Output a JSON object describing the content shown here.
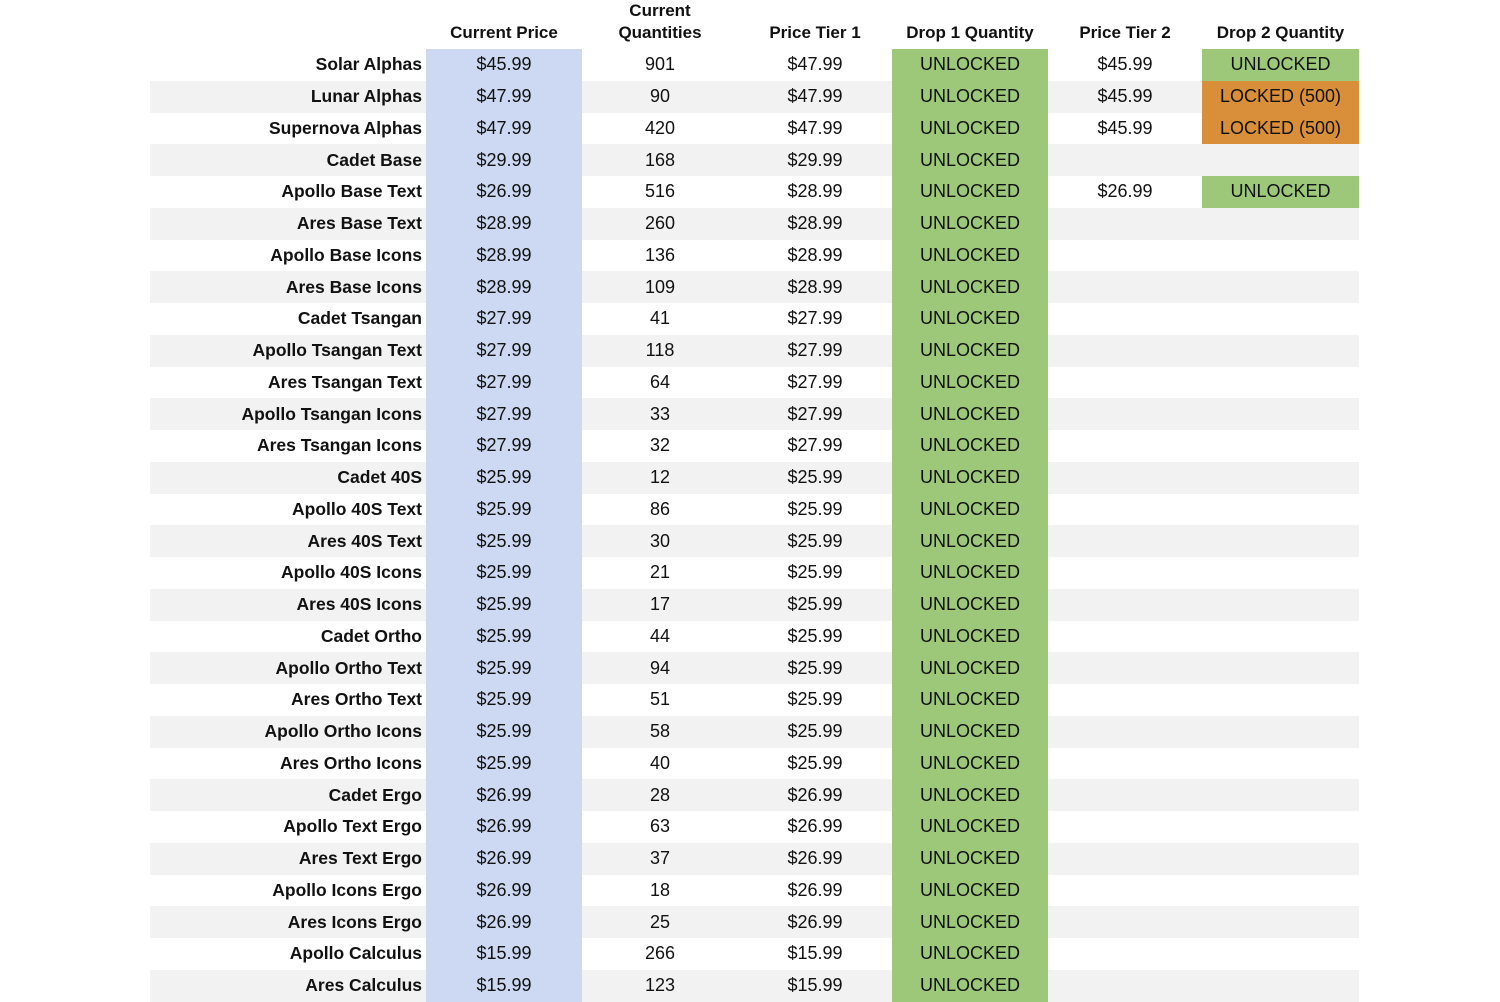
{
  "headers": {
    "current_price": "Current Price",
    "current_quantities_line1": "Current",
    "current_quantities_line2": "Quantities",
    "price_tier_1": "Price Tier 1",
    "drop_1_quantity": "Drop 1 Quantity",
    "price_tier_2": "Price Tier 2",
    "drop_2_quantity": "Drop 2 Quantity"
  },
  "colors": {
    "current_price_column": "#cdd9f3",
    "unlocked": "#9dc87a",
    "locked": "#d98f3a",
    "row_stripe": "#f2f2f2"
  },
  "rows": [
    {
      "name": "Solar Alphas",
      "price": "$45.99",
      "qty": "901",
      "tier1": "$47.99",
      "drop1": "UNLOCKED",
      "tier2": "$45.99",
      "drop2": "UNLOCKED"
    },
    {
      "name": "Lunar Alphas",
      "price": "$47.99",
      "qty": "90",
      "tier1": "$47.99",
      "drop1": "UNLOCKED",
      "tier2": "$45.99",
      "drop2": "LOCKED (500)"
    },
    {
      "name": "Supernova Alphas",
      "price": "$47.99",
      "qty": "420",
      "tier1": "$47.99",
      "drop1": "UNLOCKED",
      "tier2": "$45.99",
      "drop2": "LOCKED (500)"
    },
    {
      "name": "Cadet Base",
      "price": "$29.99",
      "qty": "168",
      "tier1": "$29.99",
      "drop1": "UNLOCKED",
      "tier2": "",
      "drop2": ""
    },
    {
      "name": "Apollo Base Text",
      "price": "$26.99",
      "qty": "516",
      "tier1": "$28.99",
      "drop1": "UNLOCKED",
      "tier2": "$26.99",
      "drop2": "UNLOCKED"
    },
    {
      "name": "Ares Base Text",
      "price": "$28.99",
      "qty": "260",
      "tier1": "$28.99",
      "drop1": "UNLOCKED",
      "tier2": "",
      "drop2": ""
    },
    {
      "name": "Apollo Base Icons",
      "price": "$28.99",
      "qty": "136",
      "tier1": "$28.99",
      "drop1": "UNLOCKED",
      "tier2": "",
      "drop2": ""
    },
    {
      "name": "Ares Base Icons",
      "price": "$28.99",
      "qty": "109",
      "tier1": "$28.99",
      "drop1": "UNLOCKED",
      "tier2": "",
      "drop2": ""
    },
    {
      "name": "Cadet Tsangan",
      "price": "$27.99",
      "qty": "41",
      "tier1": "$27.99",
      "drop1": "UNLOCKED",
      "tier2": "",
      "drop2": ""
    },
    {
      "name": "Apollo Tsangan Text",
      "price": "$27.99",
      "qty": "118",
      "tier1": "$27.99",
      "drop1": "UNLOCKED",
      "tier2": "",
      "drop2": ""
    },
    {
      "name": "Ares Tsangan Text",
      "price": "$27.99",
      "qty": "64",
      "tier1": "$27.99",
      "drop1": "UNLOCKED",
      "tier2": "",
      "drop2": ""
    },
    {
      "name": "Apollo Tsangan Icons",
      "price": "$27.99",
      "qty": "33",
      "tier1": "$27.99",
      "drop1": "UNLOCKED",
      "tier2": "",
      "drop2": ""
    },
    {
      "name": "Ares Tsangan Icons",
      "price": "$27.99",
      "qty": "32",
      "tier1": "$27.99",
      "drop1": "UNLOCKED",
      "tier2": "",
      "drop2": ""
    },
    {
      "name": "Cadet 40S",
      "price": "$25.99",
      "qty": "12",
      "tier1": "$25.99",
      "drop1": "UNLOCKED",
      "tier2": "",
      "drop2": ""
    },
    {
      "name": "Apollo 40S Text",
      "price": "$25.99",
      "qty": "86",
      "tier1": "$25.99",
      "drop1": "UNLOCKED",
      "tier2": "",
      "drop2": ""
    },
    {
      "name": "Ares 40S Text",
      "price": "$25.99",
      "qty": "30",
      "tier1": "$25.99",
      "drop1": "UNLOCKED",
      "tier2": "",
      "drop2": ""
    },
    {
      "name": "Apollo 40S Icons",
      "price": "$25.99",
      "qty": "21",
      "tier1": "$25.99",
      "drop1": "UNLOCKED",
      "tier2": "",
      "drop2": ""
    },
    {
      "name": "Ares 40S Icons",
      "price": "$25.99",
      "qty": "17",
      "tier1": "$25.99",
      "drop1": "UNLOCKED",
      "tier2": "",
      "drop2": ""
    },
    {
      "name": "Cadet Ortho",
      "price": "$25.99",
      "qty": "44",
      "tier1": "$25.99",
      "drop1": "UNLOCKED",
      "tier2": "",
      "drop2": ""
    },
    {
      "name": "Apollo Ortho Text",
      "price": "$25.99",
      "qty": "94",
      "tier1": "$25.99",
      "drop1": "UNLOCKED",
      "tier2": "",
      "drop2": ""
    },
    {
      "name": "Ares Ortho Text",
      "price": "$25.99",
      "qty": "51",
      "tier1": "$25.99",
      "drop1": "UNLOCKED",
      "tier2": "",
      "drop2": ""
    },
    {
      "name": "Apollo Ortho Icons",
      "price": "$25.99",
      "qty": "58",
      "tier1": "$25.99",
      "drop1": "UNLOCKED",
      "tier2": "",
      "drop2": ""
    },
    {
      "name": "Ares Ortho Icons",
      "price": "$25.99",
      "qty": "40",
      "tier1": "$25.99",
      "drop1": "UNLOCKED",
      "tier2": "",
      "drop2": ""
    },
    {
      "name": "Cadet Ergo",
      "price": "$26.99",
      "qty": "28",
      "tier1": "$26.99",
      "drop1": "UNLOCKED",
      "tier2": "",
      "drop2": ""
    },
    {
      "name": "Apollo Text Ergo",
      "price": "$26.99",
      "qty": "63",
      "tier1": "$26.99",
      "drop1": "UNLOCKED",
      "tier2": "",
      "drop2": ""
    },
    {
      "name": "Ares Text Ergo",
      "price": "$26.99",
      "qty": "37",
      "tier1": "$26.99",
      "drop1": "UNLOCKED",
      "tier2": "",
      "drop2": ""
    },
    {
      "name": "Apollo Icons Ergo",
      "price": "$26.99",
      "qty": "18",
      "tier1": "$26.99",
      "drop1": "UNLOCKED",
      "tier2": "",
      "drop2": ""
    },
    {
      "name": "Ares Icons Ergo",
      "price": "$26.99",
      "qty": "25",
      "tier1": "$26.99",
      "drop1": "UNLOCKED",
      "tier2": "",
      "drop2": ""
    },
    {
      "name": "Apollo Calculus",
      "price": "$15.99",
      "qty": "266",
      "tier1": "$15.99",
      "drop1": "UNLOCKED",
      "tier2": "",
      "drop2": ""
    },
    {
      "name": "Ares Calculus",
      "price": "$15.99",
      "qty": "123",
      "tier1": "$15.99",
      "drop1": "UNLOCKED",
      "tier2": "",
      "drop2": ""
    }
  ]
}
